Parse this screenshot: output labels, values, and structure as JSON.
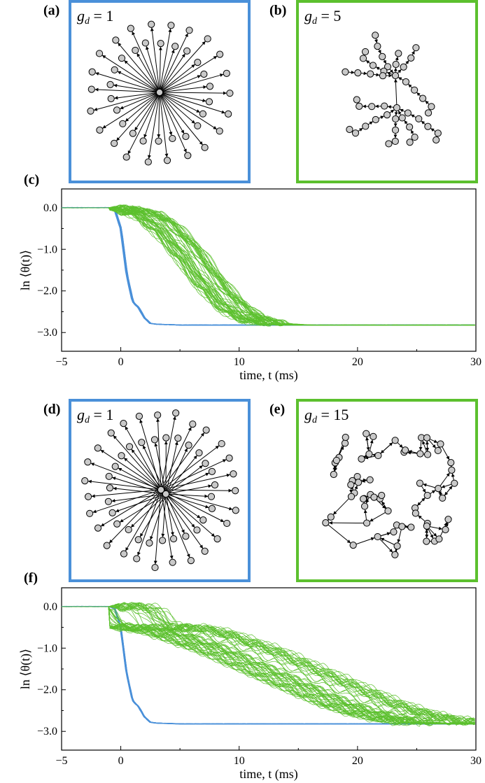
{
  "colors": {
    "blue": "#4a90d9",
    "green": "#5cc02e",
    "node_fill": "#c9c9c9"
  },
  "panels": [
    {
      "id": "a",
      "label": "(a)",
      "gd_label": "g",
      "gd_sub": "d",
      "gd_value": "= 1",
      "topology": "star",
      "border": "blue"
    },
    {
      "id": "b",
      "label": "(b)",
      "gd_label": "g",
      "gd_sub": "d",
      "gd_value": "= 5",
      "topology": "tree",
      "border": "green"
    },
    {
      "id": "d",
      "label": "(d)",
      "gd_label": "g",
      "gd_sub": "d",
      "gd_value": "= 1",
      "topology": "star",
      "border": "blue"
    },
    {
      "id": "e",
      "label": "(e)",
      "gd_label": "g",
      "gd_sub": "d",
      "gd_value": "= 15",
      "topology": "random",
      "border": "green"
    }
  ],
  "chart_data": [
    {
      "panel": "(c)",
      "type": "line",
      "xlabel": "time, t (ms)",
      "ylabel": "ln ⟨θ(t)⟩",
      "xlim": [
        -5,
        30
      ],
      "ylim": [
        -3.45,
        0.45
      ],
      "xticks": [
        "−5",
        "0",
        "10",
        "20",
        "30"
      ],
      "xtick_values": [
        -5,
        0,
        10,
        20,
        30
      ],
      "yticks": [
        "0.0",
        "−1.0",
        "−2.0",
        "−3.0"
      ],
      "ytick_values": [
        0,
        -1,
        -2,
        -3
      ],
      "series": [
        {
          "name": "g_d = 1 (star)",
          "color": "blue",
          "x": [
            -5,
            -1,
            -0.5,
            0,
            0.5,
            1,
            1.2,
            1.5,
            2,
            2.5,
            3,
            5,
            10,
            20,
            30
          ],
          "y": [
            0,
            0,
            -0.05,
            -0.5,
            -1.6,
            -2.25,
            -2.32,
            -2.4,
            -2.65,
            -2.78,
            -2.8,
            -2.82,
            -2.82,
            -2.82,
            -2.82
          ]
        },
        {
          "name": "g_d = 5 (tree)",
          "color": "green",
          "x": [
            -1,
            0,
            1,
            2,
            3,
            4,
            5,
            6,
            7,
            8,
            9,
            10,
            11,
            12,
            13,
            14,
            15,
            16,
            20,
            30
          ],
          "y": [
            0,
            -0.02,
            -0.08,
            -0.15,
            -0.3,
            -0.55,
            -0.85,
            -1.2,
            -1.6,
            -1.95,
            -2.25,
            -2.5,
            -2.65,
            -2.74,
            -2.79,
            -2.81,
            -2.82,
            -2.82,
            -2.82,
            -2.82
          ]
        }
      ]
    },
    {
      "panel": "(f)",
      "type": "line",
      "xlabel": "time, t (ms)",
      "ylabel": "ln ⟨θ(t)⟩",
      "xlim": [
        -5,
        30
      ],
      "ylim": [
        -3.45,
        0.45
      ],
      "xticks": [
        "−5",
        "0",
        "10",
        "20",
        "30"
      ],
      "xtick_values": [
        -5,
        0,
        10,
        20,
        30
      ],
      "yticks": [
        "0.0",
        "−1.0",
        "−2.0",
        "−3.0"
      ],
      "ytick_values": [
        0,
        -1,
        -2,
        -3
      ],
      "series": [
        {
          "name": "g_d = 1 (star)",
          "color": "blue",
          "x": [
            -5,
            -1,
            -0.5,
            0,
            0.5,
            1,
            1.2,
            1.5,
            2,
            2.5,
            3,
            5,
            10,
            20,
            30
          ],
          "y": [
            0,
            0,
            -0.05,
            -0.5,
            -1.6,
            -2.25,
            -2.32,
            -2.4,
            -2.65,
            -2.78,
            -2.8,
            -2.82,
            -2.82,
            -2.82,
            -2.82
          ]
        },
        {
          "name": "g_d = 15 (random)",
          "color": "green",
          "x": [
            -1,
            0,
            0.5,
            1,
            2,
            3,
            4,
            6,
            8,
            10,
            12,
            14,
            16,
            18,
            20,
            22,
            24,
            26,
            28,
            30
          ],
          "y": [
            0,
            -0.1,
            -0.3,
            -0.45,
            -0.52,
            -0.5,
            -0.52,
            -0.65,
            -0.85,
            -1.05,
            -1.3,
            -1.55,
            -1.8,
            -2.05,
            -2.3,
            -2.5,
            -2.65,
            -2.75,
            -2.8,
            -2.82
          ]
        }
      ]
    }
  ]
}
